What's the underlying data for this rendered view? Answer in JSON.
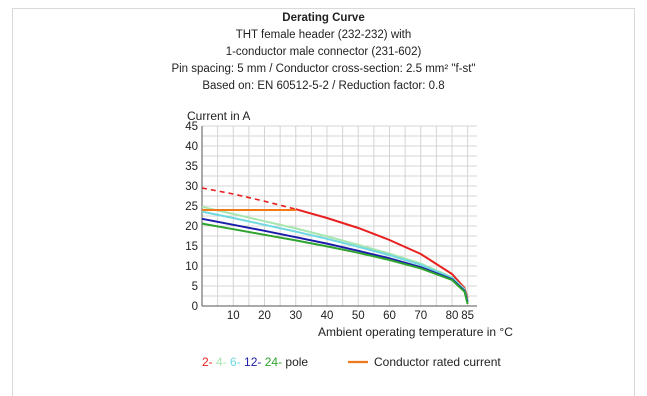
{
  "chart_data": {
    "type": "line",
    "title": "Derating Curve",
    "subtitles": [
      "THT female header (232-232) with",
      "1-conductor male connector (231-602)",
      "Pin spacing: 5 mm / Conductor cross-section: 2.5 mm² \"f-st\"",
      "Based on: EN 60512-5-2 / Reduction factor: 0.8"
    ],
    "ylabel": "Current in A",
    "xlabel": "Ambient operating temperature in °C",
    "xlim": [
      0,
      88
    ],
    "ylim": [
      0,
      45
    ],
    "xticks": [
      10,
      20,
      30,
      40,
      50,
      60,
      70,
      80,
      85
    ],
    "yticks": [
      0,
      5,
      10,
      15,
      20,
      25,
      30,
      35,
      40,
      45
    ],
    "grid": true,
    "series": [
      {
        "name": "2-pole",
        "color": "#e8201f",
        "dashed_until": 30,
        "x": [
          0,
          10,
          20,
          30,
          40,
          50,
          60,
          70,
          80,
          84,
          85
        ],
        "y": [
          29.5,
          28.0,
          26.2,
          24.2,
          22.0,
          19.5,
          16.5,
          13.0,
          8.0,
          4.5,
          2.0
        ]
      },
      {
        "name": "4-pole",
        "color": "#a8e6b0",
        "x": [
          0,
          10,
          20,
          30,
          40,
          50,
          60,
          70,
          80,
          84,
          85
        ],
        "y": [
          24.8,
          23.0,
          21.2,
          19.4,
          17.4,
          15.3,
          13.1,
          10.6,
          7.2,
          4.2,
          1.5
        ]
      },
      {
        "name": "6-pole",
        "color": "#6fd8e0",
        "x": [
          0,
          10,
          20,
          30,
          40,
          50,
          60,
          70,
          80,
          84,
          85
        ],
        "y": [
          23.6,
          22.0,
          20.3,
          18.6,
          16.8,
          14.8,
          12.7,
          10.3,
          7.0,
          4.0,
          1.2
        ]
      },
      {
        "name": "12-pole",
        "color": "#1c1caa",
        "x": [
          0,
          10,
          20,
          30,
          40,
          50,
          60,
          70,
          80,
          84,
          85
        ],
        "y": [
          21.8,
          20.3,
          18.8,
          17.2,
          15.6,
          13.8,
          11.9,
          9.7,
          6.7,
          3.8,
          1.0
        ]
      },
      {
        "name": "24-pole",
        "color": "#2ea42e",
        "x": [
          0,
          10,
          20,
          30,
          40,
          50,
          60,
          70,
          80,
          84,
          85
        ],
        "y": [
          20.6,
          19.2,
          17.8,
          16.4,
          14.9,
          13.3,
          11.5,
          9.4,
          6.5,
          3.6,
          0.5
        ]
      },
      {
        "name": "Conductor rated current",
        "color": "#f07a1a",
        "x": [
          0,
          30
        ],
        "y": [
          24.0,
          24.0
        ]
      }
    ],
    "legend": {
      "placement": "bottom",
      "pole_parts": [
        {
          "text": "2-",
          "color": "#e8201f"
        },
        {
          "text": "4-",
          "color": "#a8e6b0"
        },
        {
          "text": "6-",
          "color": "#6fd8e0"
        },
        {
          "text": "12-",
          "color": "#1c1caa"
        },
        {
          "text": "24-",
          "color": "#2ea42e"
        },
        {
          "text": "pole",
          "color": "#222222"
        }
      ],
      "conductor_label": "Conductor rated current",
      "conductor_color": "#f07a1a"
    }
  }
}
